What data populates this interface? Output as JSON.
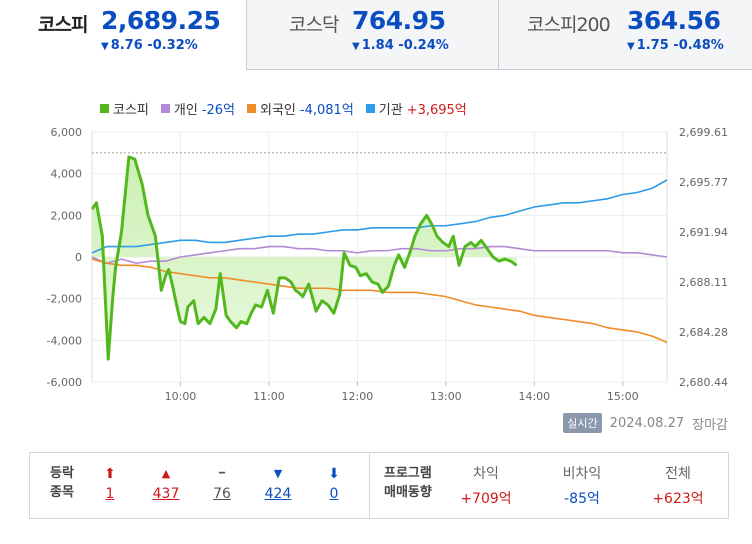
{
  "tabs": [
    {
      "name": "코스피",
      "value": "2,689.25",
      "change": "8.76 -0.32%",
      "arrow": "▼",
      "active": true
    },
    {
      "name": "코스닥",
      "value": "764.95",
      "change": "1.84 -0.24%",
      "arrow": "▼",
      "active": false
    },
    {
      "name": "코스피200",
      "value": "364.56",
      "change": "1.75 -0.48%",
      "arrow": "▼",
      "active": false
    }
  ],
  "legend": [
    {
      "label": "코스피",
      "value": "",
      "color": "#52b81e"
    },
    {
      "label": "개인",
      "value": "-26억",
      "color": "#b48ad8",
      "sign": "neg"
    },
    {
      "label": "외국인",
      "value": "-4,081억",
      "color": "#f08c28",
      "sign": "neg"
    },
    {
      "label": "기관",
      "value": "+3,695억",
      "color": "#2f9ae8",
      "sign": "pos"
    }
  ],
  "chart_data": {
    "type": "line",
    "y_left_ticks": [
      "6,000",
      "4,000",
      "2,000",
      "0",
      "-2,000",
      "-4,000",
      "-6,000"
    ],
    "y_left_range": [
      -6000,
      6000
    ],
    "y_right_ticks": [
      "2,699.61",
      "2,695.77",
      "2,691.94",
      "2,688.11",
      "2,684.28",
      "2,680.44"
    ],
    "y_right_range": [
      2680.44,
      2699.61
    ],
    "x_ticks": [
      "10:00",
      "11:00",
      "12:00",
      "13:00",
      "14:00",
      "15:00"
    ],
    "x_range_min": [
      540,
      930
    ],
    "x_tick_min": [
      600,
      660,
      720,
      780,
      840,
      900
    ],
    "reference_line": 5000,
    "series": [
      {
        "name": "코스피",
        "color": "#52b81e",
        "axis": "left",
        "fill": true,
        "x": [
          540,
          543,
          547,
          551,
          554,
          556,
          560,
          565,
          569,
          574,
          578,
          583,
          587,
          590,
          592,
          595,
          598,
          600,
          603,
          605,
          609,
          612,
          616,
          620,
          624,
          627,
          631,
          634,
          638,
          641,
          645,
          648,
          651,
          655,
          659,
          663,
          667,
          671,
          675,
          678,
          680,
          683,
          687,
          692,
          696,
          700,
          704,
          708,
          711,
          715,
          719,
          722,
          726,
          730,
          734,
          737,
          741,
          745,
          748,
          752,
          756,
          759,
          763,
          767,
          771,
          774,
          778,
          782,
          785,
          789,
          793,
          797,
          800,
          804,
          808,
          812,
          816,
          820,
          824,
          828,
          832,
          836,
          840,
          844,
          848,
          852,
          856,
          860,
          864,
          868,
          872,
          876,
          880,
          884,
          888,
          892,
          896,
          900,
          904,
          908,
          912,
          916,
          920,
          924,
          928,
          930
        ],
        "y": [
          2300,
          2600,
          1000,
          -4900,
          -2000,
          -500,
          1200,
          4800,
          4700,
          3500,
          2000,
          1000,
          -1600,
          -900,
          -600,
          -1500,
          -2500,
          -3100,
          -3200,
          -2400,
          -2100,
          -3200,
          -2900,
          -3200,
          -2500,
          -800,
          -2800,
          -3100,
          -3400,
          -3100,
          -3200,
          -2700,
          -2300,
          -2400,
          -1600,
          -2700,
          -1000,
          -1000,
          -1200,
          -1600,
          -1700,
          -1900,
          -1300,
          -2600,
          -2100,
          -2300,
          -2700,
          -1800,
          200,
          -400,
          -500,
          -900,
          -800,
          -1200,
          -1300,
          -1700,
          -1400,
          -400,
          100,
          -500,
          300,
          1000,
          1600,
          2000,
          1500,
          1000,
          700,
          500,
          1000,
          -400,
          500,
          700,
          500,
          800,
          400,
          0,
          -200,
          -100,
          -200,
          -400,
          null,
          null,
          null,
          null,
          null,
          null,
          null,
          null,
          null,
          null,
          null,
          null,
          null,
          null,
          null,
          null,
          null,
          null,
          null,
          null,
          null,
          null,
          null,
          null,
          null,
          null
        ]
      },
      {
        "name": "개인",
        "color": "#b48ad8",
        "axis": "left",
        "x": [
          540,
          550,
          560,
          570,
          580,
          590,
          600,
          610,
          620,
          630,
          640,
          650,
          660,
          670,
          680,
          690,
          700,
          710,
          720,
          730,
          740,
          750,
          760,
          770,
          780,
          790,
          800,
          810,
          820,
          830,
          840,
          850,
          860,
          870,
          880,
          890,
          900,
          910,
          920,
          930
        ],
        "y": [
          0,
          -300,
          -100,
          -300,
          -200,
          -200,
          0,
          100,
          200,
          300,
          400,
          400,
          500,
          500,
          400,
          400,
          300,
          300,
          200,
          300,
          300,
          400,
          400,
          300,
          300,
          400,
          400,
          500,
          500,
          400,
          300,
          300,
          300,
          300,
          300,
          300,
          200,
          200,
          100,
          0
        ]
      },
      {
        "name": "외국인",
        "color": "#f08c28",
        "axis": "left",
        "x": [
          540,
          550,
          560,
          570,
          580,
          590,
          600,
          610,
          620,
          630,
          640,
          650,
          660,
          670,
          680,
          690,
          700,
          710,
          720,
          730,
          740,
          750,
          760,
          770,
          780,
          790,
          800,
          810,
          820,
          830,
          840,
          850,
          860,
          870,
          880,
          890,
          900,
          910,
          920,
          930
        ],
        "y": [
          -100,
          -300,
          -400,
          -400,
          -500,
          -700,
          -800,
          -900,
          -1000,
          -1000,
          -1100,
          -1200,
          -1300,
          -1400,
          -1500,
          -1500,
          -1500,
          -1600,
          -1600,
          -1600,
          -1700,
          -1700,
          -1700,
          -1800,
          -1900,
          -2100,
          -2300,
          -2400,
          -2500,
          -2600,
          -2800,
          -2900,
          -3000,
          -3100,
          -3200,
          -3400,
          -3500,
          -3600,
          -3800,
          -4100
        ]
      },
      {
        "name": "기관",
        "color": "#2f9ae8",
        "axis": "left",
        "x": [
          540,
          550,
          560,
          570,
          580,
          590,
          600,
          610,
          620,
          630,
          640,
          650,
          660,
          670,
          680,
          690,
          700,
          710,
          720,
          730,
          740,
          750,
          760,
          770,
          780,
          790,
          800,
          810,
          820,
          830,
          840,
          850,
          860,
          870,
          880,
          890,
          900,
          910,
          920,
          930
        ],
        "y": [
          200,
          500,
          500,
          500,
          600,
          700,
          800,
          800,
          700,
          700,
          800,
          900,
          1000,
          1000,
          1100,
          1100,
          1200,
          1300,
          1300,
          1400,
          1400,
          1400,
          1400,
          1500,
          1500,
          1600,
          1700,
          1900,
          2000,
          2200,
          2400,
          2500,
          2600,
          2600,
          2700,
          2800,
          3000,
          3100,
          3300,
          3700
        ]
      }
    ]
  },
  "status": {
    "badge": "실시간",
    "date": "2024.08.27",
    "state": "장마감"
  },
  "stats": {
    "label_line1": "등락",
    "label_line2": "종목",
    "cells": [
      {
        "sym": "⬆",
        "num": "1",
        "cls": "up"
      },
      {
        "sym": "▲",
        "num": "437",
        "cls": "up"
      },
      {
        "sym": "━",
        "num": "76",
        "cls": "flat"
      },
      {
        "sym": "▼",
        "num": "424",
        "cls": "down"
      },
      {
        "sym": "⬇",
        "num": "0",
        "cls": "down"
      }
    ],
    "program_line1": "프로그램",
    "program_line2": "매매동향",
    "program": [
      {
        "head": "차익",
        "value": "+709억",
        "cls": "up"
      },
      {
        "head": "비차익",
        "value": "-85억",
        "cls": "down"
      },
      {
        "head": "전체",
        "value": "+623억",
        "cls": "up"
      }
    ]
  }
}
